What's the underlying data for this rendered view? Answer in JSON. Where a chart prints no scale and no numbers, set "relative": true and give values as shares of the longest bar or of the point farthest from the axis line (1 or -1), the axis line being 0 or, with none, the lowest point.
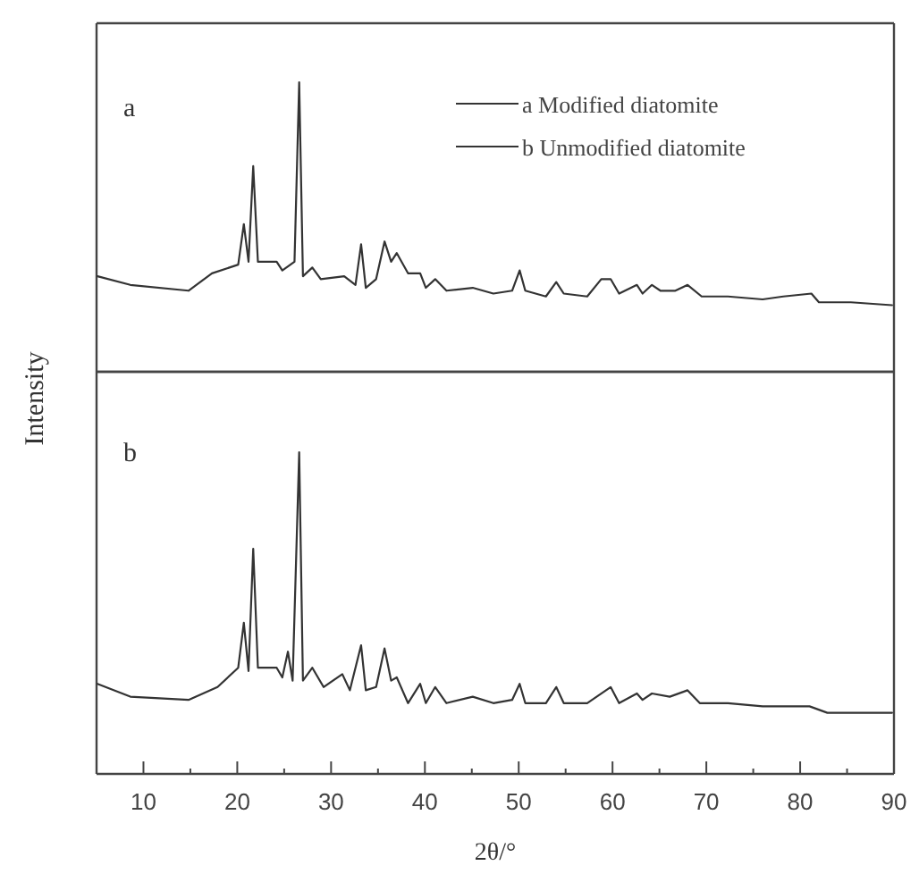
{
  "chart_data": [
    {
      "type": "line",
      "relative": true,
      "xlim": [
        5,
        90
      ],
      "tick_labels": false,
      "legend": "top right",
      "annotations": [
        "a"
      ],
      "series": [
        {
          "name": "a Modified diatomite",
          "color": "#333333",
          "x": [
            5.1,
            8.6,
            14.8,
            17.3,
            20.1,
            20.7,
            21.2,
            21.7,
            22.2,
            24.2,
            24.8,
            26.1,
            26.6,
            27.0,
            28.0,
            28.9,
            31.4,
            32.6,
            33.2,
            33.7,
            34.8,
            35.7,
            36.4,
            37.0,
            38.2,
            39.5,
            40.1,
            41.1,
            42.3,
            45.1,
            47.3,
            49.3,
            50.1,
            50.7,
            52.9,
            54.0,
            54.8,
            57.3,
            58.8,
            59.8,
            60.7,
            62.6,
            63.2,
            64.2,
            65.1,
            66.7,
            68.0,
            69.5,
            72.3,
            76.0,
            78.2,
            81.2,
            82.0,
            85.4,
            89.8
          ],
          "values": [
            0.33,
            0.3,
            0.28,
            0.34,
            0.37,
            0.51,
            0.38,
            0.71,
            0.38,
            0.38,
            0.35,
            0.38,
            1.0,
            0.33,
            0.36,
            0.32,
            0.33,
            0.3,
            0.44,
            0.29,
            0.32,
            0.45,
            0.38,
            0.41,
            0.34,
            0.34,
            0.29,
            0.32,
            0.28,
            0.29,
            0.27,
            0.28,
            0.35,
            0.28,
            0.26,
            0.31,
            0.27,
            0.26,
            0.32,
            0.32,
            0.27,
            0.3,
            0.27,
            0.3,
            0.28,
            0.28,
            0.3,
            0.26,
            0.26,
            0.25,
            0.26,
            0.27,
            0.24,
            0.24,
            0.23
          ]
        }
      ]
    },
    {
      "type": "line",
      "relative": true,
      "xlim": [
        5,
        90
      ],
      "xticks": [
        10,
        {
          "value": 15,
          "label": null
        },
        20,
        {
          "value": 25,
          "label": null
        },
        30,
        {
          "value": 35,
          "label": null
        },
        40,
        {
          "value": 45,
          "label": null
        },
        50,
        {
          "value": 55,
          "label": null
        },
        60,
        {
          "value": 65,
          "label": null
        },
        70,
        {
          "value": 75,
          "label": null
        },
        80,
        {
          "value": 85,
          "label": null
        },
        90
      ],
      "tick_labels": "x",
      "xlabel": "2θ/°",
      "ylabel": "Intensity",
      "legend": "top right",
      "annotations": [
        "b"
      ],
      "series": [
        {
          "name": "b Unmodified diatomite",
          "color": "#333333",
          "x": [
            5.1,
            8.6,
            14.8,
            17.9,
            20.1,
            20.7,
            21.2,
            21.7,
            22.2,
            24.2,
            24.8,
            25.4,
            25.9,
            26.6,
            27.0,
            28.0,
            29.2,
            31.2,
            32.0,
            33.2,
            33.7,
            34.8,
            35.7,
            36.4,
            37.0,
            38.2,
            39.5,
            40.1,
            41.1,
            42.3,
            45.1,
            47.3,
            49.3,
            50.1,
            50.7,
            52.9,
            54.0,
            54.8,
            57.3,
            59.8,
            60.7,
            62.6,
            63.2,
            64.2,
            66.1,
            68.0,
            69.3,
            72.3,
            76.0,
            81.0,
            82.9,
            87.3,
            89.8
          ],
          "values": [
            0.28,
            0.24,
            0.23,
            0.27,
            0.33,
            0.47,
            0.32,
            0.7,
            0.33,
            0.33,
            0.3,
            0.38,
            0.29,
            1.0,
            0.29,
            0.33,
            0.27,
            0.31,
            0.26,
            0.4,
            0.26,
            0.27,
            0.39,
            0.29,
            0.3,
            0.22,
            0.28,
            0.22,
            0.27,
            0.22,
            0.24,
            0.22,
            0.23,
            0.28,
            0.22,
            0.22,
            0.27,
            0.22,
            0.22,
            0.27,
            0.22,
            0.25,
            0.23,
            0.25,
            0.24,
            0.26,
            0.22,
            0.22,
            0.21,
            0.21,
            0.19,
            0.19,
            0.19
          ]
        }
      ]
    }
  ]
}
